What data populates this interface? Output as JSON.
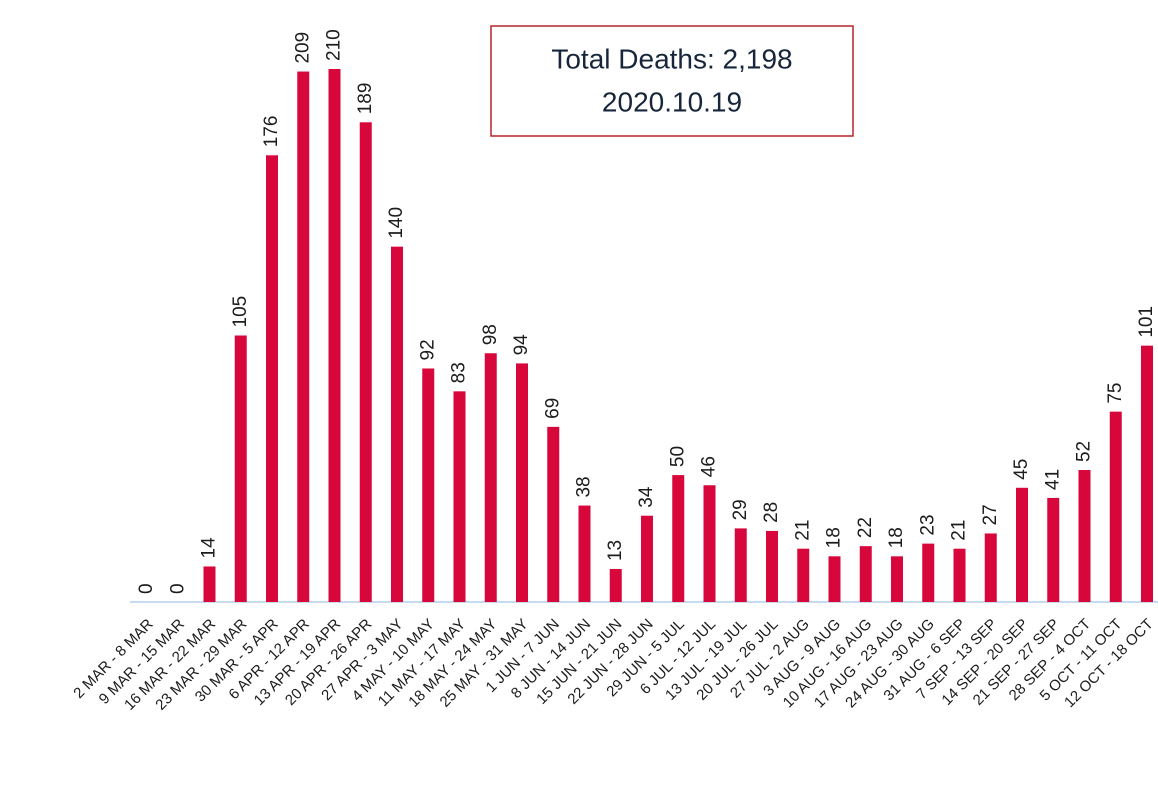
{
  "chart_data": {
    "type": "bar",
    "annotations": [
      "Total Deaths: 2,198",
      "2020.10.19"
    ],
    "categories": [
      "2 MAR - 8 MAR",
      "9 MAR - 15 MAR",
      "16 MAR - 22 MAR",
      "23 MAR - 29 MAR",
      "30 MAR - 5 APR",
      "6 APR - 12 APR",
      "13 APR - 19 APR",
      "20 APR - 26 APR",
      "27 APR - 3 MAY",
      "4 MAY - 10 MAY",
      "11 MAY - 17 MAY",
      "18 MAY - 24 MAY",
      "25 MAY - 31 MAY",
      "1 JUN - 7 JUN",
      "8 JUN - 14 JUN",
      "15 JUN - 21 JUN",
      "22 JUN - 28 JUN",
      "29 JUN - 5 JUL",
      "6 JUL - 12 JUL",
      "13 JUL - 19 JUL",
      "20 JUL - 26 JUL",
      "27 JUL - 2 AUG",
      "3 AUG - 9 AUG",
      "10 AUG - 16 AUG",
      "17 AUG - 23 AUG",
      "24 AUG - 30 AUG",
      "31 AUG - 6 SEP",
      "7 SEP - 13 SEP",
      "14 SEP - 20 SEP",
      "21 SEP - 27 SEP",
      "28 SEP - 4 OCT",
      "5 OCT - 11 OCT",
      "12 OCT - 18 OCT"
    ],
    "values": [
      0,
      0,
      14,
      105,
      176,
      209,
      210,
      189,
      140,
      92,
      83,
      98,
      94,
      69,
      38,
      13,
      34,
      50,
      46,
      29,
      28,
      21,
      18,
      22,
      18,
      23,
      21,
      27,
      45,
      41,
      52,
      75,
      101
    ],
    "color": "#d7063b",
    "ylim": [
      0,
      210
    ]
  }
}
